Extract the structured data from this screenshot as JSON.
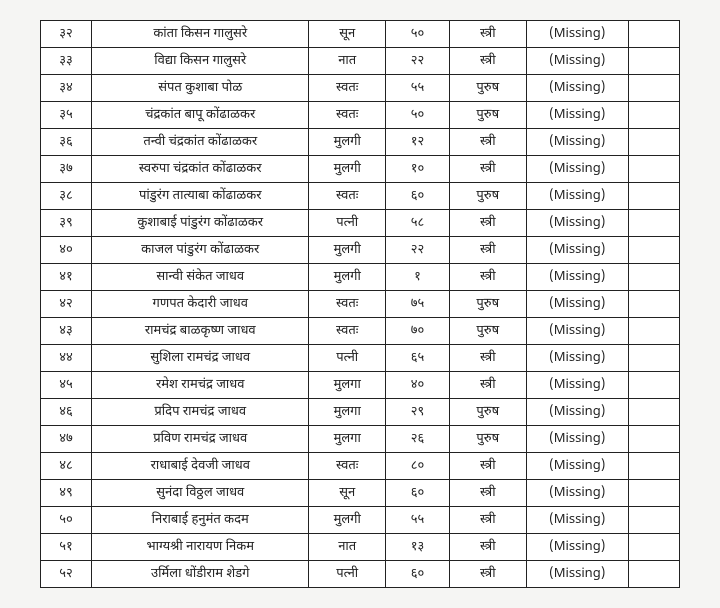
{
  "table": {
    "colors": {
      "border": "#222222",
      "background": "#ffffff",
      "page_bg": "#f5f5f3",
      "text": "#222222"
    },
    "font_size_pt": 10,
    "columns": [
      "sr",
      "name",
      "relation",
      "age",
      "gender",
      "status",
      "blank"
    ],
    "rows": [
      {
        "sr": "३२",
        "name": "कांता किसन गालुसरे",
        "relation": "सून",
        "age": "५०",
        "gender": "स्त्री",
        "status": "(Missing)",
        "blank": ""
      },
      {
        "sr": "३३",
        "name": "विद्या किसन गालुसरे",
        "relation": "नात",
        "age": "२२",
        "gender": "स्त्री",
        "status": "(Missing)",
        "blank": ""
      },
      {
        "sr": "३४",
        "name": "संपत कुशाबा पोळ",
        "relation": "स्वतः",
        "age": "५५",
        "gender": "पुरुष",
        "status": "(Missing)",
        "blank": ""
      },
      {
        "sr": "३५",
        "name": "चंद्रकांत बापू कोंढाळकर",
        "relation": "स्वतः",
        "age": "५०",
        "gender": "पुरुष",
        "status": "(Missing)",
        "blank": ""
      },
      {
        "sr": "३६",
        "name": "तन्वी चंद्रकांत कोंढाळकर",
        "relation": "मुलगी",
        "age": "१२",
        "gender": "स्त्री",
        "status": "(Missing)",
        "blank": ""
      },
      {
        "sr": "३७",
        "name": "स्वरुपा चंद्रकांत कोंढाळकर",
        "relation": "मुलगी",
        "age": "१०",
        "gender": "स्त्री",
        "status": "(Missing)",
        "blank": ""
      },
      {
        "sr": "३८",
        "name": "पांडुरंग तात्याबा कोंढाळकर",
        "relation": "स्वतः",
        "age": "६०",
        "gender": "पुरुष",
        "status": "(Missing)",
        "blank": ""
      },
      {
        "sr": "३९",
        "name": "कुशाबाई पांडुरंग कोंढाळकर",
        "relation": "पत्नी",
        "age": "५८",
        "gender": "स्त्री",
        "status": "(Missing)",
        "blank": ""
      },
      {
        "sr": "४०",
        "name": "काजल पांडुरंग कोंढाळकर",
        "relation": "मुलगी",
        "age": "२२",
        "gender": "स्त्री",
        "status": "(Missing)",
        "blank": ""
      },
      {
        "sr": "४१",
        "name": "सान्वी संकेत जाधव",
        "relation": "मुलगी",
        "age": "१",
        "gender": "स्त्री",
        "status": "(Missing)",
        "blank": ""
      },
      {
        "sr": "४२",
        "name": "गणपत केदारी जाधव",
        "relation": "स्वतः",
        "age": "७५",
        "gender": "पुरुष",
        "status": "(Missing)",
        "blank": ""
      },
      {
        "sr": "४३",
        "name": "रामचंद्र बाळकृष्ण जाधव",
        "relation": "स्वतः",
        "age": "७०",
        "gender": "पुरुष",
        "status": "(Missing)",
        "blank": ""
      },
      {
        "sr": "४४",
        "name": "सुशिला रामचंद्र जाधव",
        "relation": "पत्नी",
        "age": "६५",
        "gender": "स्त्री",
        "status": "(Missing)",
        "blank": ""
      },
      {
        "sr": "४५",
        "name": "रमेश रामचंद्र जाधव",
        "relation": "मुलगा",
        "age": "४०",
        "gender": "स्त्री",
        "status": "(Missing)",
        "blank": ""
      },
      {
        "sr": "४६",
        "name": "प्रदिप रामचंद्र जाधव",
        "relation": "मुलगा",
        "age": "२९",
        "gender": "पुरुष",
        "status": "(Missing)",
        "blank": ""
      },
      {
        "sr": "४७",
        "name": "प्रविण रामचंद्र जाधव",
        "relation": "मुलगा",
        "age": "२६",
        "gender": "पुरुष",
        "status": "(Missing)",
        "blank": ""
      },
      {
        "sr": "४८",
        "name": "राधाबाई देवजी जाधव",
        "relation": "स्वतः",
        "age": "८०",
        "gender": "स्त्री",
        "status": "(Missing)",
        "blank": ""
      },
      {
        "sr": "४९",
        "name": "सुनंदा विठ्ठल जाधव",
        "relation": "सून",
        "age": "६०",
        "gender": "स्त्री",
        "status": "(Missing)",
        "blank": ""
      },
      {
        "sr": "५०",
        "name": "निराबाई हनुमंत कदम",
        "relation": "मुलगी",
        "age": "५५",
        "gender": "स्त्री",
        "status": "(Missing)",
        "blank": ""
      },
      {
        "sr": "५१",
        "name": "भाग्यश्री नारायण निकम",
        "relation": "नात",
        "age": "१३",
        "gender": "स्त्री",
        "status": "(Missing)",
        "blank": ""
      },
      {
        "sr": "५२",
        "name": "उर्मिला धोंडीराम शेडगे",
        "relation": "पत्नी",
        "age": "६०",
        "gender": "स्त्री",
        "status": "(Missing)",
        "blank": ""
      }
    ]
  }
}
